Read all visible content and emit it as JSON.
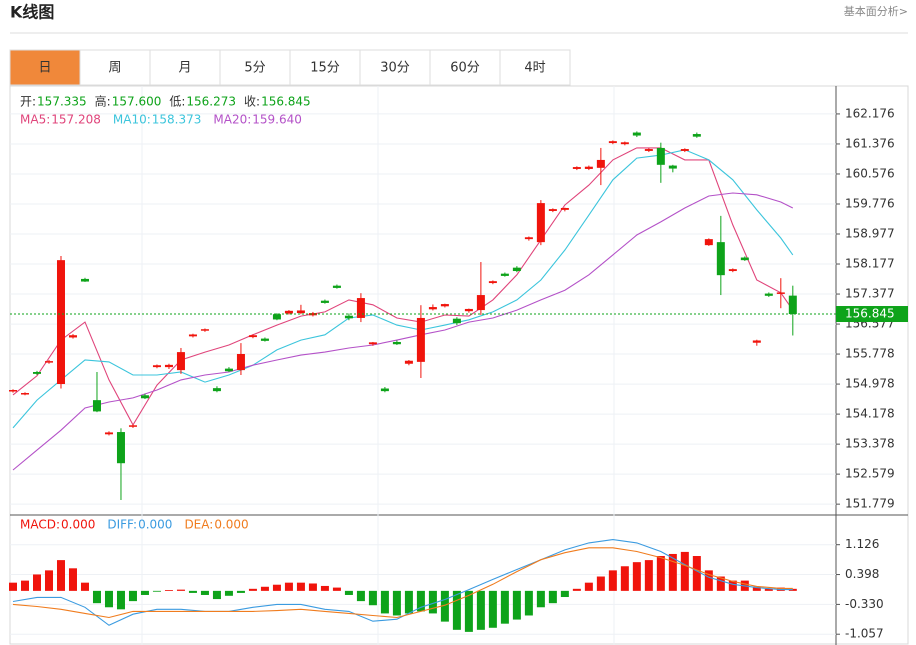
{
  "header": {
    "title": "K线图",
    "link": "基本面分析>"
  },
  "tabs": [
    "日",
    "周",
    "月",
    "5分",
    "15分",
    "30分",
    "60分",
    "4时"
  ],
  "active_tab": 0,
  "chart_data": [
    {
      "type": "candlestick",
      "ohlc_legend": [
        {
          "label": "开:",
          "value": 157.335
        },
        {
          "label": "高:",
          "value": {
            "value": 157.6,
            "label": "157.600"
          }
        },
        {
          "label": "低:",
          "value": 156.273
        },
        {
          "label": "收:",
          "value": 156.845
        }
      ],
      "up_color": "#f0140c",
      "down_color": "#0ea31a",
      "open": [
        154.78,
        154.7,
        155.3,
        155.55,
        154.98,
        156.22,
        157.78,
        154.55,
        153.64,
        153.7,
        153.84,
        154.68,
        155.43,
        155.43,
        155.35,
        156.25,
        156.4,
        154.87,
        155.39,
        155.35,
        156.23,
        156.19,
        156.84,
        156.86,
        156.87,
        156.81,
        157.2,
        157.6,
        156.8,
        156.74,
        156.04,
        154.86,
        156.1,
        155.52,
        155.57,
        156.97,
        157.05,
        156.72,
        156.92,
        156.95,
        157.67,
        157.92,
        158.08,
        158.84,
        158.76,
        159.59,
        159.62,
        160.71,
        160.71,
        160.74,
        161.4,
        161.37,
        161.68,
        161.19,
        161.27,
        160.8,
        161.19,
        161.64,
        158.68,
        158.76,
        157.99,
        158.35,
        156.08,
        157.39,
        157.38,
        157.335
      ],
      "high": [
        154.84,
        154.76,
        155.33,
        155.62,
        158.39,
        156.31,
        157.81,
        155.3,
        153.72,
        153.8,
        153.9,
        154.72,
        155.5,
        155.52,
        155.94,
        156.32,
        156.46,
        154.92,
        155.43,
        156.07,
        156.3,
        156.22,
        156.87,
        156.95,
        157.09,
        156.9,
        157.23,
        157.63,
        156.86,
        157.4,
        156.1,
        154.9,
        156.14,
        155.62,
        157.08,
        157.1,
        157.12,
        156.76,
        156.99,
        158.23,
        157.74,
        157.95,
        158.12,
        158.91,
        159.88,
        159.66,
        159.68,
        160.78,
        160.8,
        161.27,
        161.47,
        161.44,
        161.71,
        161.26,
        161.41,
        160.82,
        161.26,
        161.68,
        158.86,
        159.46,
        158.06,
        158.38,
        156.16,
        157.42,
        157.8,
        157.6
      ],
      "low": [
        154.75,
        154.68,
        155.22,
        155.52,
        154.86,
        156.19,
        157.7,
        154.23,
        153.61,
        151.89,
        153.81,
        154.58,
        155.4,
        155.38,
        155.25,
        156.22,
        156.37,
        154.76,
        155.3,
        155.22,
        156.2,
        156.11,
        156.68,
        156.83,
        156.84,
        156.78,
        157.12,
        157.52,
        156.68,
        156.63,
        156.0,
        154.76,
        156.02,
        155.48,
        155.14,
        156.94,
        157.02,
        156.55,
        156.88,
        156.82,
        157.64,
        157.84,
        157.96,
        158.8,
        158.68,
        159.56,
        159.58,
        160.68,
        160.68,
        160.28,
        161.37,
        161.34,
        161.56,
        161.16,
        160.34,
        160.62,
        161.16,
        161.54,
        158.66,
        157.35,
        157.96,
        158.26,
        156.0,
        157.3,
        157.0,
        156.273
      ],
      "close": [
        154.82,
        154.74,
        155.25,
        155.59,
        158.28,
        156.28,
        157.71,
        154.25,
        153.69,
        152.87,
        153.88,
        154.6,
        155.48,
        155.49,
        155.83,
        156.3,
        156.44,
        154.79,
        155.32,
        155.78,
        156.28,
        156.13,
        156.7,
        156.93,
        156.94,
        156.87,
        157.14,
        157.54,
        156.73,
        157.27,
        156.09,
        154.79,
        156.04,
        155.6,
        156.74,
        157.03,
        157.11,
        156.6,
        156.98,
        157.35,
        157.72,
        157.86,
        157.99,
        158.89,
        159.8,
        159.64,
        159.67,
        160.76,
        160.77,
        160.95,
        161.45,
        161.42,
        161.6,
        161.24,
        160.82,
        160.72,
        161.24,
        161.57,
        158.84,
        157.88,
        158.04,
        158.28,
        156.14,
        157.33,
        157.42,
        156.845
      ],
      "series": [
        {
          "name": "MA5:",
          "color": "#e0457b",
          "legend_value": 157.208,
          "x": [
            0,
            2,
            4,
            6,
            8,
            10,
            12,
            14,
            16,
            18,
            20,
            22,
            24,
            26,
            28,
            30,
            32,
            34,
            36,
            38,
            40,
            42,
            44,
            46,
            48,
            50,
            52,
            54,
            56,
            58,
            60,
            62,
            64,
            65
          ],
          "values": [
            154.69,
            155.2,
            156.15,
            156.63,
            155.09,
            153.89,
            154.95,
            155.62,
            155.83,
            156.02,
            156.29,
            156.55,
            156.79,
            156.9,
            157.22,
            157.09,
            156.74,
            156.63,
            156.82,
            156.79,
            157.22,
            157.89,
            158.82,
            159.75,
            160.28,
            160.95,
            161.27,
            161.27,
            160.95,
            160.95,
            159.22,
            157.75,
            157.41,
            156.95
          ]
        },
        {
          "name": "MA10:",
          "color": "#3cc5dc",
          "legend_value": 158.373,
          "x": [
            0,
            2,
            4,
            6,
            8,
            10,
            12,
            14,
            16,
            18,
            20,
            22,
            24,
            26,
            28,
            30,
            32,
            34,
            36,
            38,
            40,
            42,
            44,
            46,
            48,
            50,
            52,
            54,
            56,
            58,
            60,
            62,
            64,
            65
          ],
          "values": [
            153.81,
            154.55,
            155.09,
            155.62,
            155.57,
            155.22,
            155.22,
            155.3,
            155.03,
            155.22,
            155.48,
            155.89,
            156.15,
            156.29,
            156.74,
            156.82,
            156.55,
            156.42,
            156.55,
            156.69,
            156.9,
            157.22,
            157.75,
            158.55,
            159.48,
            160.42,
            161.0,
            161.08,
            161.22,
            160.95,
            160.42,
            159.62,
            158.87,
            158.42
          ]
        },
        {
          "name": "MA20:",
          "color": "#b452c8",
          "legend_value": {
            "value": 159.64,
            "label": "159.640"
          },
          "x": [
            0,
            2,
            4,
            6,
            8,
            10,
            12,
            14,
            16,
            18,
            20,
            22,
            24,
            26,
            28,
            30,
            32,
            34,
            36,
            38,
            40,
            42,
            44,
            46,
            48,
            50,
            52,
            54,
            56,
            58,
            60,
            62,
            64,
            65
          ],
          "values": [
            152.69,
            153.22,
            153.75,
            154.34,
            154.5,
            154.61,
            154.82,
            155.09,
            155.22,
            155.3,
            155.48,
            155.62,
            155.75,
            155.83,
            155.94,
            156.02,
            156.15,
            156.29,
            156.42,
            156.63,
            156.74,
            156.95,
            157.22,
            157.48,
            157.89,
            158.42,
            158.95,
            159.3,
            159.67,
            159.99,
            160.07,
            160.02,
            159.83,
            159.67
          ]
        }
      ],
      "last_price": {
        "value": 156.845,
        "color": "#0ea31a"
      },
      "xlim": [
        -0.25,
        68.6
      ],
      "ylim": [
        151.49,
        162.92
      ],
      "yticks": [
        162.176,
        161.376,
        160.576,
        159.776,
        158.977,
        158.177,
        157.377,
        156.577,
        155.778,
        154.978,
        154.178,
        153.378,
        152.579,
        151.779
      ],
      "grid": true
    },
    {
      "type": "macd",
      "histogram": {
        "name": "MACD:",
        "legend_value": {
          "value": 0,
          "label": "0.000"
        },
        "up_color": "#f0140c",
        "down_color": "#0ea31a",
        "values": [
          0.2,
          0.25,
          0.4,
          0.5,
          0.75,
          0.55,
          0.2,
          -0.3,
          -0.4,
          -0.45,
          -0.25,
          -0.1,
          -0.02,
          0.02,
          0.03,
          -0.05,
          -0.1,
          -0.2,
          -0.12,
          -0.05,
          0.05,
          0.1,
          0.15,
          0.2,
          0.2,
          0.18,
          0.12,
          0.08,
          -0.1,
          -0.25,
          -0.35,
          -0.55,
          -0.6,
          -0.55,
          -0.5,
          -0.55,
          -0.75,
          -0.95,
          -1.0,
          -0.95,
          -0.9,
          -0.8,
          -0.7,
          -0.6,
          -0.4,
          -0.3,
          -0.15,
          0.05,
          0.2,
          0.35,
          0.5,
          0.6,
          0.7,
          0.75,
          0.85,
          0.9,
          0.95,
          0.85,
          0.5,
          0.35,
          0.25,
          0.25,
          0.1,
          0.05,
          0.08,
          0.05
        ]
      },
      "series": [
        {
          "name": "DIFF:",
          "color": "#3b9be0",
          "legend_value": {
            "value": 0,
            "label": "0.000"
          },
          "x": [
            0,
            2,
            4,
            6,
            8,
            10,
            12,
            14,
            16,
            18,
            20,
            22,
            24,
            26,
            28,
            30,
            32,
            34,
            36,
            38,
            40,
            42,
            44,
            46,
            48,
            50,
            52,
            54,
            56,
            58,
            60,
            62,
            64,
            65
          ],
          "values": [
            -0.26,
            -0.16,
            -0.16,
            -0.4,
            -0.84,
            -0.57,
            -0.45,
            -0.45,
            -0.5,
            -0.5,
            -0.4,
            -0.33,
            -0.33,
            -0.45,
            -0.5,
            -0.74,
            -0.69,
            -0.4,
            -0.21,
            0.03,
            0.28,
            0.52,
            0.76,
            1.0,
            1.17,
            1.25,
            1.17,
            0.96,
            0.64,
            0.33,
            0.16,
            0.08,
            0.03,
            0.03
          ]
        },
        {
          "name": "DEA:",
          "color": "#f07c1e",
          "legend_value": {
            "value": 0,
            "label": "0.000"
          },
          "x": [
            0,
            2,
            4,
            6,
            8,
            10,
            12,
            14,
            16,
            18,
            20,
            22,
            24,
            26,
            28,
            30,
            32,
            34,
            36,
            38,
            40,
            42,
            44,
            46,
            48,
            50,
            52,
            54,
            56,
            58,
            60,
            62,
            64,
            65
          ],
          "values": [
            -0.33,
            -0.38,
            -0.45,
            -0.55,
            -0.65,
            -0.5,
            -0.5,
            -0.5,
            -0.5,
            -0.5,
            -0.5,
            -0.48,
            -0.45,
            -0.5,
            -0.55,
            -0.6,
            -0.65,
            -0.5,
            -0.35,
            -0.11,
            0.16,
            0.47,
            0.76,
            0.93,
            1.05,
            1.05,
            0.96,
            0.81,
            0.62,
            0.4,
            0.23,
            0.11,
            0.06,
            0.06
          ]
        }
      ],
      "xlim": [
        -0.25,
        68.6
      ],
      "ylim": [
        -1.32,
        1.85
      ],
      "yticks": [
        1.126,
        0.398,
        {
          "value": -0.33,
          "label": "-0.330"
        },
        -1.057
      ],
      "grid": true
    }
  ]
}
